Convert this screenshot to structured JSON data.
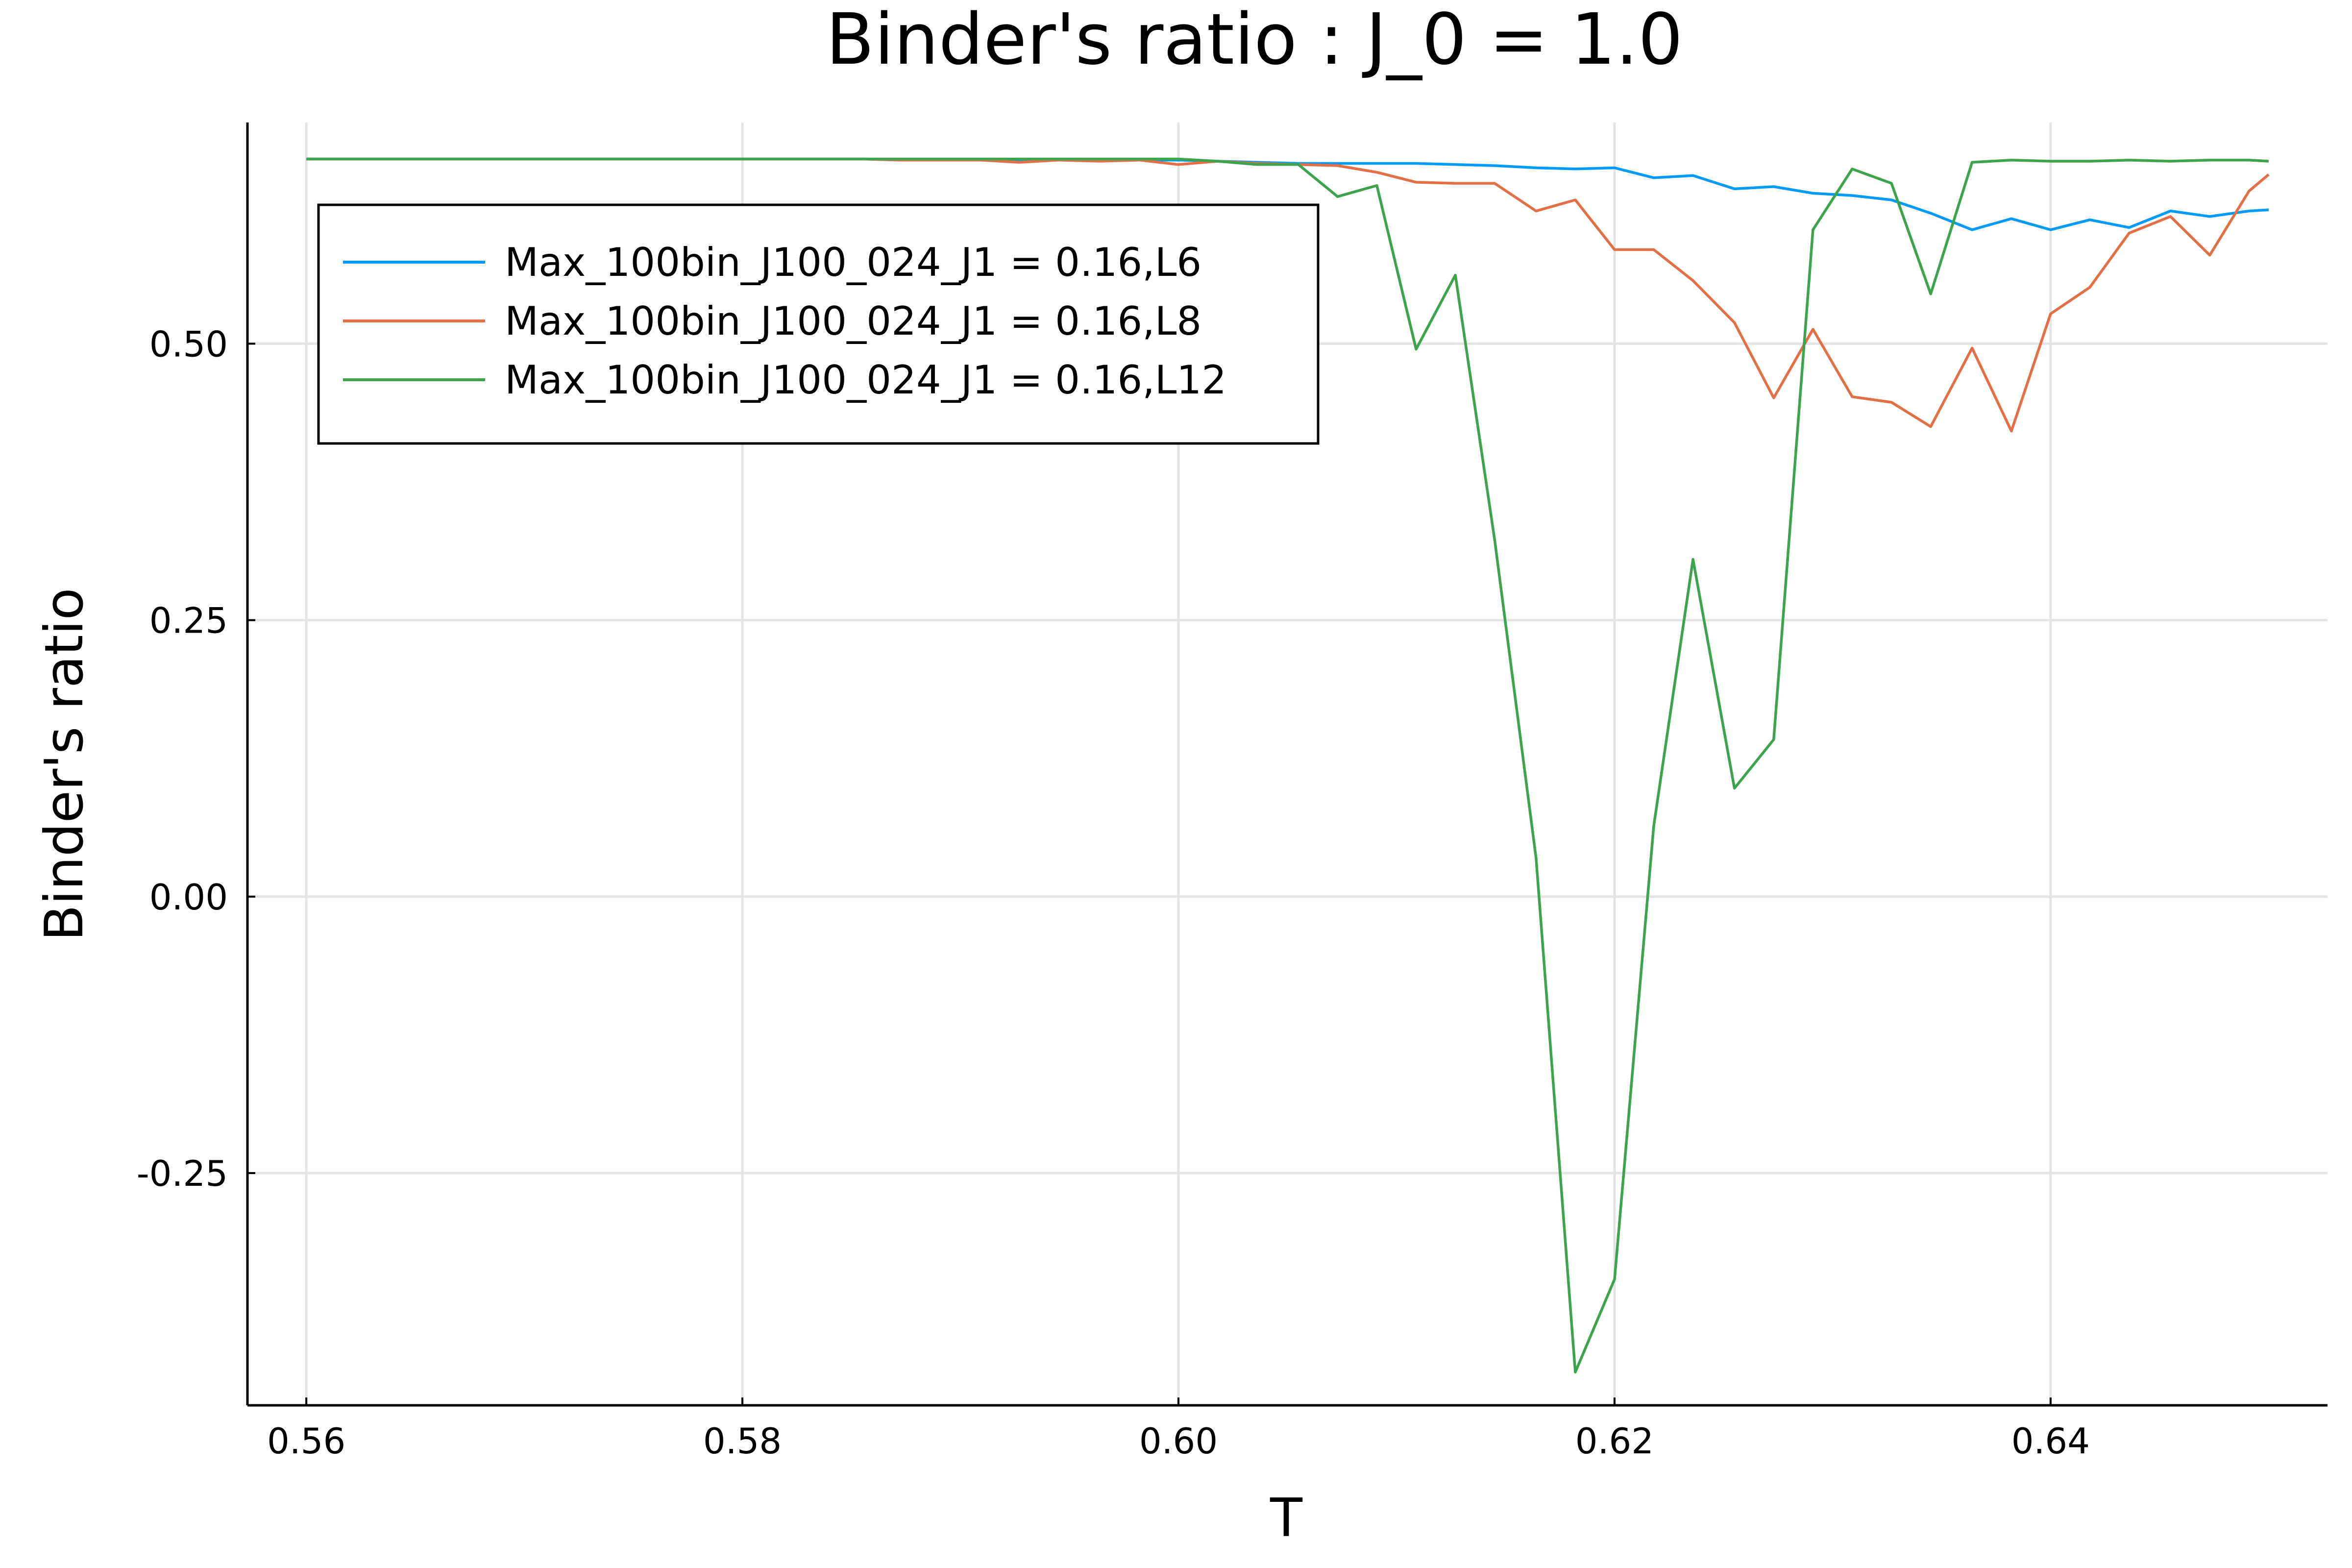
{
  "chart_data": {
    "type": "line",
    "title": "Binder's ratio : J_0 = 1.0",
    "xlabel": "T",
    "ylabel": "Binder's ratio",
    "xlim": [
      0.5573,
      0.6527
    ],
    "ylim": [
      -0.46,
      0.7
    ],
    "xticks": [
      0.56,
      0.58,
      0.6,
      0.62,
      0.64
    ],
    "xtick_labels": [
      "0.56",
      "0.58",
      "0.60",
      "0.62",
      "0.64"
    ],
    "yticks": [
      0.5,
      0.25,
      0.0,
      -0.25
    ],
    "ytick_labels": [
      "0.50",
      "0.25",
      "0.00",
      "-0.25"
    ],
    "grid": true,
    "legend_position": "top-left",
    "x": [
      0.56,
      0.5618,
      0.5636,
      0.5655,
      0.5673,
      0.5691,
      0.5709,
      0.5727,
      0.5745,
      0.5764,
      0.5782,
      0.58,
      0.5818,
      0.5836,
      0.5855,
      0.5873,
      0.5891,
      0.5909,
      0.5927,
      0.5945,
      0.5964,
      0.5982,
      0.6,
      0.6018,
      0.6036,
      0.6055,
      0.6073,
      0.6091,
      0.6109,
      0.6127,
      0.6145,
      0.6164,
      0.6182,
      0.62,
      0.6218,
      0.6236,
      0.6255,
      0.6273,
      0.6291,
      0.6309,
      0.6327,
      0.6345,
      0.6364,
      0.6382,
      0.64,
      0.6418,
      0.6436,
      0.6455,
      0.6473,
      0.6491,
      0.65
    ],
    "series": [
      {
        "name": "Max_100bin_J100_024_J1 = 0.16,L6",
        "color": "#009AFA",
        "values": [
          0.667,
          0.667,
          0.667,
          0.667,
          0.667,
          0.667,
          0.667,
          0.667,
          0.667,
          0.667,
          0.667,
          0.667,
          0.667,
          0.667,
          0.667,
          0.666,
          0.666,
          0.666,
          0.666,
          0.666,
          0.666,
          0.666,
          0.666,
          0.665,
          0.664,
          0.663,
          0.663,
          0.663,
          0.663,
          0.662,
          0.661,
          0.659,
          0.658,
          0.659,
          0.65,
          0.652,
          0.64,
          0.642,
          0.636,
          0.634,
          0.63,
          0.618,
          0.603,
          0.613,
          0.603,
          0.612,
          0.605,
          0.62,
          0.615,
          0.62,
          0.621
        ]
      },
      {
        "name": "Max_100bin_J100_024_J1 = 0.16,L8",
        "color": "#E26F46",
        "values": [
          0.667,
          0.667,
          0.667,
          0.667,
          0.667,
          0.667,
          0.667,
          0.667,
          0.667,
          0.667,
          0.667,
          0.667,
          0.667,
          0.667,
          0.667,
          0.666,
          0.666,
          0.666,
          0.664,
          0.666,
          0.665,
          0.666,
          0.662,
          0.665,
          0.663,
          0.662,
          0.661,
          0.655,
          0.646,
          0.645,
          0.645,
          0.62,
          0.63,
          0.585,
          0.585,
          0.557,
          0.519,
          0.451,
          0.513,
          0.452,
          0.447,
          0.425,
          0.496,
          0.421,
          0.527,
          0.551,
          0.6,
          0.615,
          0.58,
          0.638,
          0.653
        ]
      },
      {
        "name": "Max_100bin_J100_024_J1 = 0.16,L12",
        "color": "#3DA44D",
        "values": [
          0.667,
          0.667,
          0.667,
          0.667,
          0.667,
          0.667,
          0.667,
          0.667,
          0.667,
          0.667,
          0.667,
          0.667,
          0.667,
          0.667,
          0.667,
          0.667,
          0.667,
          0.667,
          0.667,
          0.667,
          0.667,
          0.667,
          0.667,
          0.665,
          0.662,
          0.662,
          0.633,
          0.643,
          0.495,
          0.562,
          0.323,
          0.035,
          -0.43,
          -0.346,
          0.064,
          0.305,
          0.098,
          0.142,
          0.603,
          0.658,
          0.645,
          0.545,
          0.664,
          0.666,
          0.665,
          0.665,
          0.666,
          0.665,
          0.666,
          0.666,
          0.665
        ]
      }
    ]
  }
}
